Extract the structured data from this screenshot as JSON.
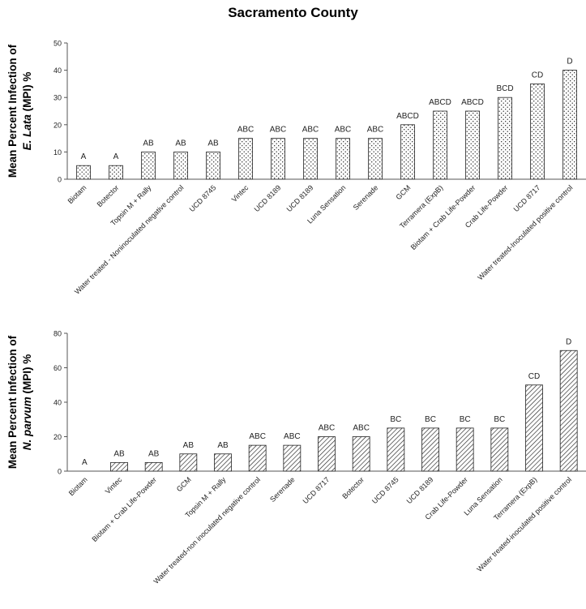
{
  "title": "Sacramento County",
  "chart_data": [
    {
      "type": "bar",
      "ylabel_line1": "Mean Percent Infection of",
      "ylabel_line2_italic": "E. Lata",
      "ylabel_line2_rest": " (MPI) %",
      "ylim": [
        0,
        50
      ],
      "yticks": [
        0,
        10,
        20,
        30,
        40,
        50
      ],
      "grid": false,
      "bar_pattern": "dots",
      "categories": [
        "Biotam",
        "Botector",
        "Topsin M + Rally",
        "Water treated - Noninoculated negative control",
        "UCD 8745",
        "Vintec",
        "UCD 8189",
        "UCD 8189",
        "Luna Sensation",
        "Serenade",
        "GCM",
        "Terramera (ExpB)",
        "Biotam + Crab Life-Powder",
        "Crab Life-Powder",
        "UCD 8717",
        "Water treated-Inoculated positive control"
      ],
      "values": [
        5,
        5,
        10,
        10,
        10,
        15,
        15,
        15,
        15,
        15,
        20,
        25,
        25,
        30,
        35,
        40
      ],
      "letters": [
        "A",
        "A",
        "AB",
        "AB",
        "AB",
        "ABC",
        "ABC",
        "ABC",
        "ABC",
        "ABC",
        "ABCD",
        "ABCD",
        "ABCD",
        "BCD",
        "CD",
        "D"
      ]
    },
    {
      "type": "bar",
      "ylabel_line1": "Mean Percent Infection of",
      "ylabel_line2_italic": "N. parvum",
      "ylabel_line2_rest": " (MPI) %",
      "ylim": [
        0,
        80
      ],
      "yticks": [
        0,
        20,
        40,
        60,
        80
      ],
      "grid": false,
      "bar_pattern": "hatch",
      "categories": [
        "Biotam",
        "Vintec",
        "Biotam + Crab Life-Powder",
        "GCM",
        "Topsin M + Rally",
        "Water treated-non inoculated negative control",
        "Serenade",
        "UCD 8717",
        "Botector",
        "UCD 8745",
        "UCD 8189",
        "Crab Life-Powder",
        "Luna Sensation",
        "Terramera (ExpB)",
        "Water treated-inoculated positive control"
      ],
      "values": [
        0,
        5,
        5,
        10,
        10,
        15,
        15,
        20,
        20,
        25,
        25,
        25,
        25,
        50,
        70
      ],
      "letters": [
        "A",
        "AB",
        "AB",
        "AB",
        "AB",
        "ABC",
        "ABC",
        "ABC",
        "ABC",
        "BC",
        "BC",
        "BC",
        "BC",
        "CD",
        "D"
      ]
    }
  ]
}
